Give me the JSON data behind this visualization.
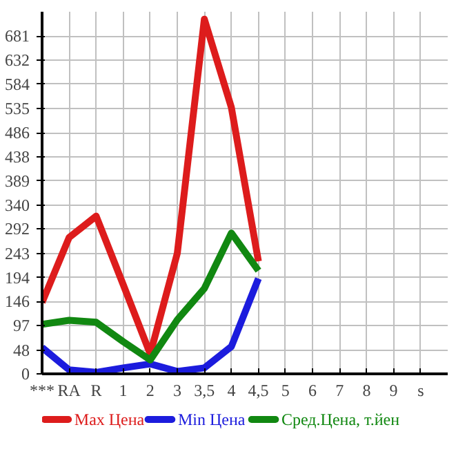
{
  "chart_data": {
    "type": "line",
    "categories": [
      "***",
      "RA",
      "R",
      "1",
      "2",
      "3",
      "3,5",
      "4",
      "4,5",
      "5",
      "6",
      "7",
      "8",
      "9",
      "s"
    ],
    "series": [
      {
        "name": "Max Цена",
        "color": "#dd1c1c",
        "values": [
          144,
          275,
          318,
          180,
          40,
          243,
          715,
          537,
          227,
          null,
          null,
          null,
          null,
          null,
          null
        ]
      },
      {
        "name": "Min Цена",
        "color": "#1c1cdd",
        "values": [
          53,
          8,
          3,
          12,
          20,
          5,
          12,
          55,
          192,
          null,
          null,
          null,
          null,
          null,
          null
        ]
      },
      {
        "name": "Сред.Цена, т.йен",
        "color": "#118811",
        "values": [
          100,
          108,
          104,
          65,
          28,
          109,
          172,
          284,
          208,
          null,
          null,
          null,
          null,
          null,
          null
        ]
      }
    ],
    "ylim": [
      0,
      730
    ],
    "yticks": [
      0,
      48,
      97,
      146,
      194,
      243,
      292,
      340,
      389,
      438,
      486,
      535,
      584,
      632,
      681
    ],
    "grid": true,
    "legend": "bottom",
    "marker": "none",
    "line_style": "solid"
  }
}
